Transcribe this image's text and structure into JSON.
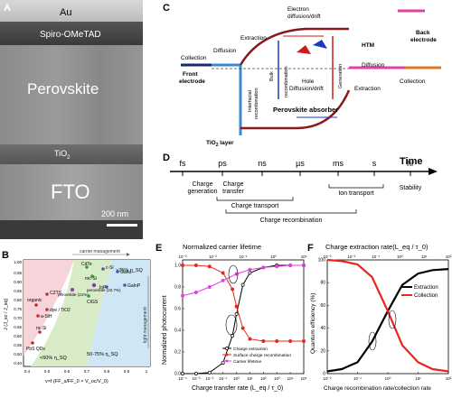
{
  "panelA": {
    "letter": "A",
    "layers": {
      "au": "Au",
      "spiro": "Spiro-OMeTAD",
      "perovskite": "Perovskite",
      "tio2": "TiO",
      "tio2_sub": "2",
      "fto": "FTO"
    },
    "scalebar": "200 nm"
  },
  "panelB": {
    "letter": "B",
    "ylabel": "J (J_sc / J_sq)",
    "xlabel": "v×f (FF_s/FF_0 × V_oc/V_0)",
    "top_label": "carrier management",
    "side_label": "light management",
    "yticks": [
      "0.40",
      "0.50",
      "0.55",
      "0.60",
      "0.65",
      "0.70",
      "0.75",
      "0.80",
      "0.85",
      "0.90",
      "0.95",
      "1.00"
    ],
    "xticks": [
      "0.4",
      "0.5",
      "0.6",
      "0.7",
      "0.8",
      "0.9",
      "1"
    ],
    "regions": [
      "<50% η_SQ",
      "50-75% η_SQ",
      ">75% η_SQ"
    ],
    "points": [
      "GaAs",
      "c-Si",
      "GaInP",
      "InP",
      "mc-Si",
      "perovskite (22.7%)",
      "CdTe",
      "perovskite (21%)",
      "CIGS",
      "CZTS",
      "organic",
      "dye / TiO2",
      "a-SiH",
      "nc-Si",
      "PbS QDs"
    ]
  },
  "panelC": {
    "letter": "C",
    "labels": {
      "extraction_top": "Extraction",
      "electron_diff": "Electron",
      "electron_diff2": "diffusion/drift",
      "htm": "HTM",
      "back_electrode": "Back",
      "back_electrode2": "electrode",
      "collection_left": "Collection",
      "diffusion_left": "Diffusion",
      "front_electrode": "Front",
      "front_electrode2": "electrode",
      "interfacial": "Interfacial",
      "interfacial2": "recombination",
      "bulk": "Bulk",
      "bulk2": "recombination",
      "generation": "Generation",
      "diffusion_right": "Diffusion",
      "extraction_right": "Extraction",
      "collection_right": "Collection",
      "hole_diff": "Hole",
      "hole_diff2": "Diffusion/drift",
      "absorber": "Perovskite absorber",
      "tio2": "TiO",
      "tio2_sub": "2",
      "tio2_layer": " layer"
    }
  },
  "panelD": {
    "letter": "D",
    "axis": "Time",
    "ticks": [
      "fs",
      "ps",
      "ns",
      "µs",
      "ms",
      "s",
      "hr"
    ],
    "processes": [
      "Charge",
      "generation",
      "Charge",
      "transfer",
      "Charge transport",
      "Ion transport",
      "Stability",
      "Charge recombination"
    ]
  },
  "panelE": {
    "letter": "E",
    "title": "Normalized carrier lifetime",
    "ylabel": "Normalized photocurrent",
    "xlabel": "Charge transfer rate (L_eq / τ_0)",
    "legend": [
      "Charge extraction",
      "Surface charge recombination",
      "Carrier lifetime"
    ],
    "colors": {
      "extraction": "#000000",
      "surface": "#e8251f",
      "lifetime": "#e040e0"
    },
    "yticks": [
      "0.0",
      "0.2",
      "0.4",
      "0.6",
      "0.8",
      "1.0"
    ],
    "xticks": [
      "10⁻⁴",
      "10⁻³",
      "10⁻²",
      "10⁻¹",
      "10⁰",
      "10¹",
      "10²",
      "10³",
      "10⁴",
      "10⁵"
    ],
    "topticks": [
      "10⁻³",
      "10⁻²",
      "10⁻¹",
      "10⁰",
      "10¹"
    ]
  },
  "panelF": {
    "letter": "F",
    "title": "Charge extraction rate(L_eq / τ_0)",
    "ylabel": "Quantum efficiency (%)",
    "xlabel": "Charge recombination rate/collection rate",
    "legend": [
      "Extraction",
      "Collection"
    ],
    "colors": {
      "extraction": "#000000",
      "collection": "#e8251f"
    },
    "yticks": [
      "0",
      "20",
      "40",
      "60",
      "80",
      "100"
    ],
    "xticks": [
      "10⁻²",
      "10⁻¹",
      "10⁰",
      "10¹",
      "10²"
    ],
    "topticks": [
      "10⁻³",
      "10⁻²",
      "10⁻¹",
      "10⁰",
      "10¹",
      "10²"
    ]
  },
  "chart_data": [
    {
      "type": "line",
      "title": "Normalized carrier lifetime",
      "xlabel": "Charge transfer rate (L_eq / τ_0)",
      "ylabel": "Normalized photocurrent",
      "x_scale": "log",
      "xlim": [
        0.0001,
        100000
      ],
      "ylim": [
        0,
        1.05
      ],
      "series": [
        {
          "name": "Charge extraction",
          "x": [
            0.0001,
            0.001,
            0.01,
            0.1,
            0.5,
            1,
            3,
            10,
            100,
            1000,
            10000,
            100000
          ],
          "y": [
            0.0,
            0.0,
            0.01,
            0.1,
            0.35,
            0.55,
            0.82,
            0.93,
            0.98,
            1.0,
            1.0,
            1.0
          ]
        },
        {
          "name": "Surface charge recombination",
          "x": [
            0.0001,
            0.001,
            0.01,
            0.1,
            0.5,
            1,
            3,
            10,
            100,
            1000,
            10000,
            100000
          ],
          "y": [
            1.0,
            1.0,
            0.99,
            0.93,
            0.78,
            0.62,
            0.42,
            0.32,
            0.3,
            0.3,
            0.3,
            0.3
          ]
        },
        {
          "name": "Carrier lifetime",
          "x": [
            0.0001,
            0.001,
            0.01,
            0.1,
            1,
            10,
            100,
            1000,
            10000,
            100000
          ],
          "y": [
            0.72,
            0.75,
            0.8,
            0.86,
            0.92,
            0.96,
            0.98,
            0.99,
            1.0,
            1.0
          ]
        }
      ]
    },
    {
      "type": "line",
      "title": "Charge extraction rate(L_eq / τ_0)",
      "xlabel": "Charge recombination rate/collection rate",
      "ylabel": "Quantum efficiency (%)",
      "x_scale": "log",
      "xlim": [
        0.01,
        100
      ],
      "ylim": [
        0,
        100
      ],
      "series": [
        {
          "name": "Extraction",
          "x": [
            0.01,
            0.03,
            0.1,
            0.3,
            1,
            3,
            10,
            30,
            100
          ],
          "y": [
            2,
            4,
            10,
            28,
            55,
            78,
            88,
            91,
            92
          ]
        },
        {
          "name": "Collection",
          "x": [
            0.01,
            0.03,
            0.1,
            0.3,
            1,
            3,
            10,
            30,
            100
          ],
          "y": [
            100,
            99,
            96,
            85,
            55,
            25,
            10,
            4,
            2
          ]
        }
      ]
    }
  ]
}
